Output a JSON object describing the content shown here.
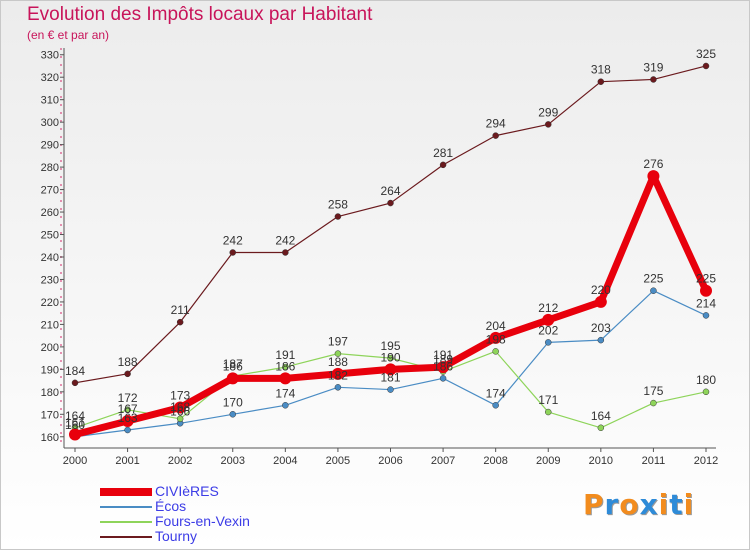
{
  "title": "Evolution des Impôts locaux par Habitant",
  "subtitle": "(en € et par an)",
  "logo_text": "Proxiti",
  "chart_data": {
    "type": "line",
    "title": "Evolution des Impôts locaux par Habitant",
    "subtitle": "(en € et par an)",
    "xlabel": "",
    "ylabel": "",
    "x": [
      2000,
      2001,
      2002,
      2003,
      2004,
      2005,
      2006,
      2007,
      2008,
      2009,
      2010,
      2011,
      2012
    ],
    "yticks": [
      160,
      170,
      180,
      190,
      200,
      210,
      220,
      230,
      240,
      250,
      260,
      270,
      280,
      290,
      300,
      310,
      320,
      330
    ],
    "ylim": [
      155,
      333
    ],
    "grid": false,
    "legend_position": "bottom-left",
    "series": [
      {
        "name": "Tourny",
        "color": "#6b1a1e",
        "values": [
          184,
          188,
          211,
          242,
          242,
          258,
          264,
          281,
          294,
          299,
          318,
          319,
          325
        ]
      },
      {
        "name": "Écos",
        "color": "#4a8cc4",
        "values": [
          160,
          163,
          166,
          170,
          174,
          182,
          181,
          186,
          174,
          202,
          203,
          225,
          214
        ]
      },
      {
        "name": "Fours-en-Vexin",
        "color": "#8ed45a",
        "values": [
          164,
          172,
          168,
          187,
          191,
          197,
          195,
          189,
          198,
          171,
          164,
          175,
          180
        ]
      },
      {
        "name": "CIVIèRES",
        "color": "#e8000c",
        "values": [
          161,
          167,
          173,
          186,
          186,
          188,
          190,
          191,
          204,
          212,
          220,
          276,
          225
        ]
      }
    ],
    "legend_order": [
      "CIVIèRES",
      "Écos",
      "Fours-en-Vexin",
      "Tourny"
    ]
  }
}
